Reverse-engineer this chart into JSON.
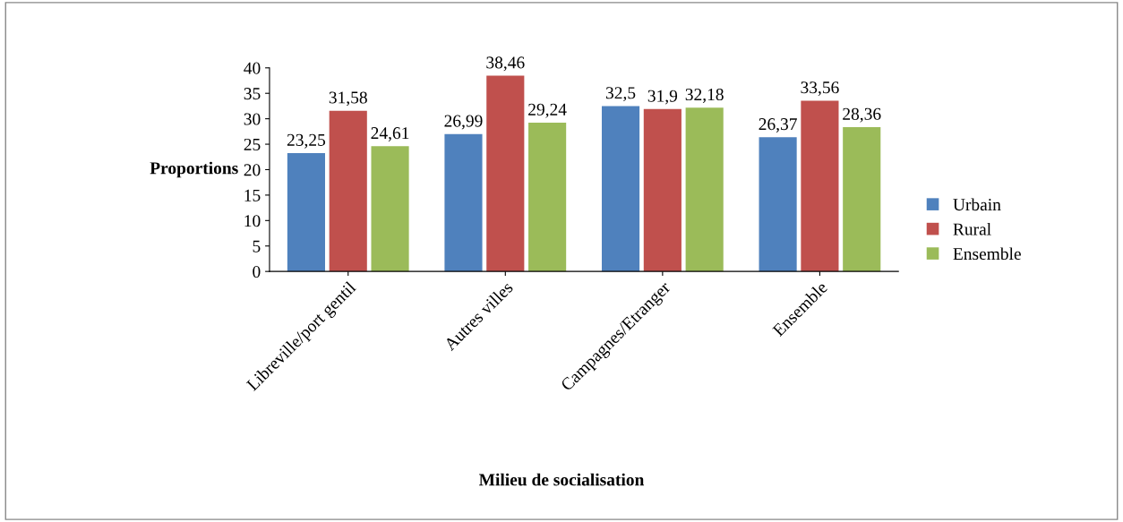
{
  "chart_data": {
    "type": "bar",
    "xlabel": "Milieu de socialisation",
    "ylabel": "Proportions",
    "categories": [
      "Libreville/port gentil",
      "Autres villes",
      "Campagnes/Etranger",
      "Ensemble"
    ],
    "series": [
      {
        "name": "Urbain",
        "color": "#4f81bd",
        "values": [
          23.25,
          26.99,
          32.5,
          26.37
        ],
        "value_labels": [
          "23,25",
          "26,99",
          "32,5",
          "26,37"
        ]
      },
      {
        "name": "Rural",
        "color": "#c0504d",
        "values": [
          31.58,
          38.46,
          31.9,
          33.56
        ],
        "value_labels": [
          "31,58",
          "38,46",
          "31,9",
          "33,56"
        ]
      },
      {
        "name": "Ensemble",
        "color": "#9bbb59",
        "values": [
          24.61,
          29.24,
          32.18,
          28.36
        ],
        "value_labels": [
          "24,61",
          "29,24",
          "32,18",
          "28,36"
        ]
      }
    ],
    "ylim": [
      0,
      40
    ],
    "yticks": [
      0,
      5,
      10,
      15,
      20,
      25,
      30,
      35,
      40
    ],
    "grid": false,
    "legend": "right"
  }
}
